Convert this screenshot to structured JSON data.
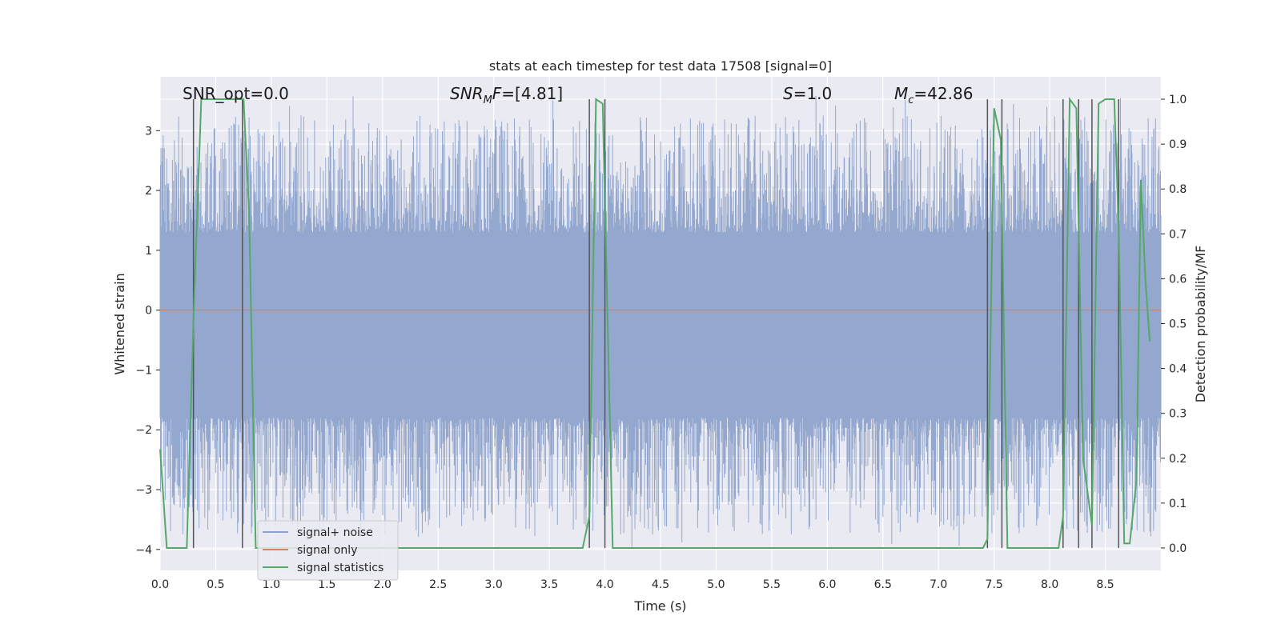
{
  "chart_data": {
    "type": "line",
    "title": "stats at each timestep for test data 17508 [signal=0]",
    "xlabel": "Time (s)",
    "ylabel": "Whitened strain",
    "y2label": "Detection probability/MF",
    "xlim": [
      0.0,
      9.0
    ],
    "ylim": [
      -4.35,
      3.9
    ],
    "y2lim": [
      -0.05,
      1.05
    ],
    "xticks": [
      "0.0",
      "0.5",
      "1.0",
      "1.5",
      "2.0",
      "2.5",
      "3.0",
      "3.5",
      "4.0",
      "4.5",
      "5.0",
      "5.5",
      "6.0",
      "6.5",
      "7.0",
      "7.5",
      "8.0",
      "8.5"
    ],
    "yticks": [
      "3",
      "2",
      "1",
      "0",
      "−1",
      "−2",
      "−3",
      "−4"
    ],
    "y2ticks": [
      "1.0",
      "0.9",
      "0.8",
      "0.7",
      "0.6",
      "0.5",
      "0.4",
      "0.3",
      "0.2",
      "0.1",
      "0.0"
    ],
    "grid": true,
    "legend_position": "lower-left",
    "colors": {
      "plot_bg": "#eaeaf2",
      "grid": "#ffffff",
      "noise": "#8fa4cc",
      "signal": "#dd8452",
      "stats": "#55a868",
      "vlines": "#555555"
    },
    "annotations": {
      "snr_opt": "SNR_opt=0.0",
      "snr_mf_main": "SNR",
      "snr_mf_sub": "M",
      "snr_mf_rest": "F=[4.81]",
      "s_main": "S",
      "s_rest": "=1.0",
      "mc_main": "M",
      "mc_sub": "c",
      "mc_rest": "=42.86"
    },
    "series": [
      {
        "name": "signal+ noise",
        "kind": "noise",
        "envelope": {
          "typical_min": -1.8,
          "typical_max": 1.3,
          "extreme_min": -4.1,
          "extreme_max": 3.6,
          "samples": 2600
        }
      },
      {
        "name": "signal only",
        "kind": "constant",
        "value": 0.0
      },
      {
        "name": "signal statistics",
        "kind": "probability",
        "x": [
          0.0,
          0.06,
          0.24,
          0.3,
          0.37,
          0.4,
          0.75,
          0.8,
          0.86,
          3.8,
          3.86,
          3.92,
          3.98,
          4.07,
          4.1,
          7.4,
          7.44,
          7.5,
          7.56,
          7.62,
          7.65,
          8.08,
          8.12,
          8.18,
          8.24,
          8.3,
          8.38,
          8.44,
          8.5,
          8.58,
          8.62,
          8.67,
          8.72,
          8.78,
          8.82,
          8.86,
          8.9
        ],
        "y": [
          0.22,
          0.0,
          0.0,
          0.51,
          1.0,
          1.0,
          1.0,
          0.75,
          0.0,
          0.0,
          0.07,
          1.0,
          0.99,
          0.0,
          0.0,
          0.0,
          0.02,
          0.98,
          0.91,
          0.0,
          0.0,
          0.0,
          0.07,
          1.0,
          0.98,
          0.2,
          0.05,
          0.99,
          1.0,
          1.0,
          0.72,
          0.01,
          0.01,
          0.15,
          0.82,
          0.6,
          0.46
        ]
      }
    ],
    "vlines_x": [
      0.3,
      0.74,
      3.86,
      4.0,
      7.44,
      7.57,
      8.12,
      8.26,
      8.38,
      8.62
    ],
    "legend": [
      "signal+ noise",
      "signal only",
      "signal statistics"
    ]
  }
}
